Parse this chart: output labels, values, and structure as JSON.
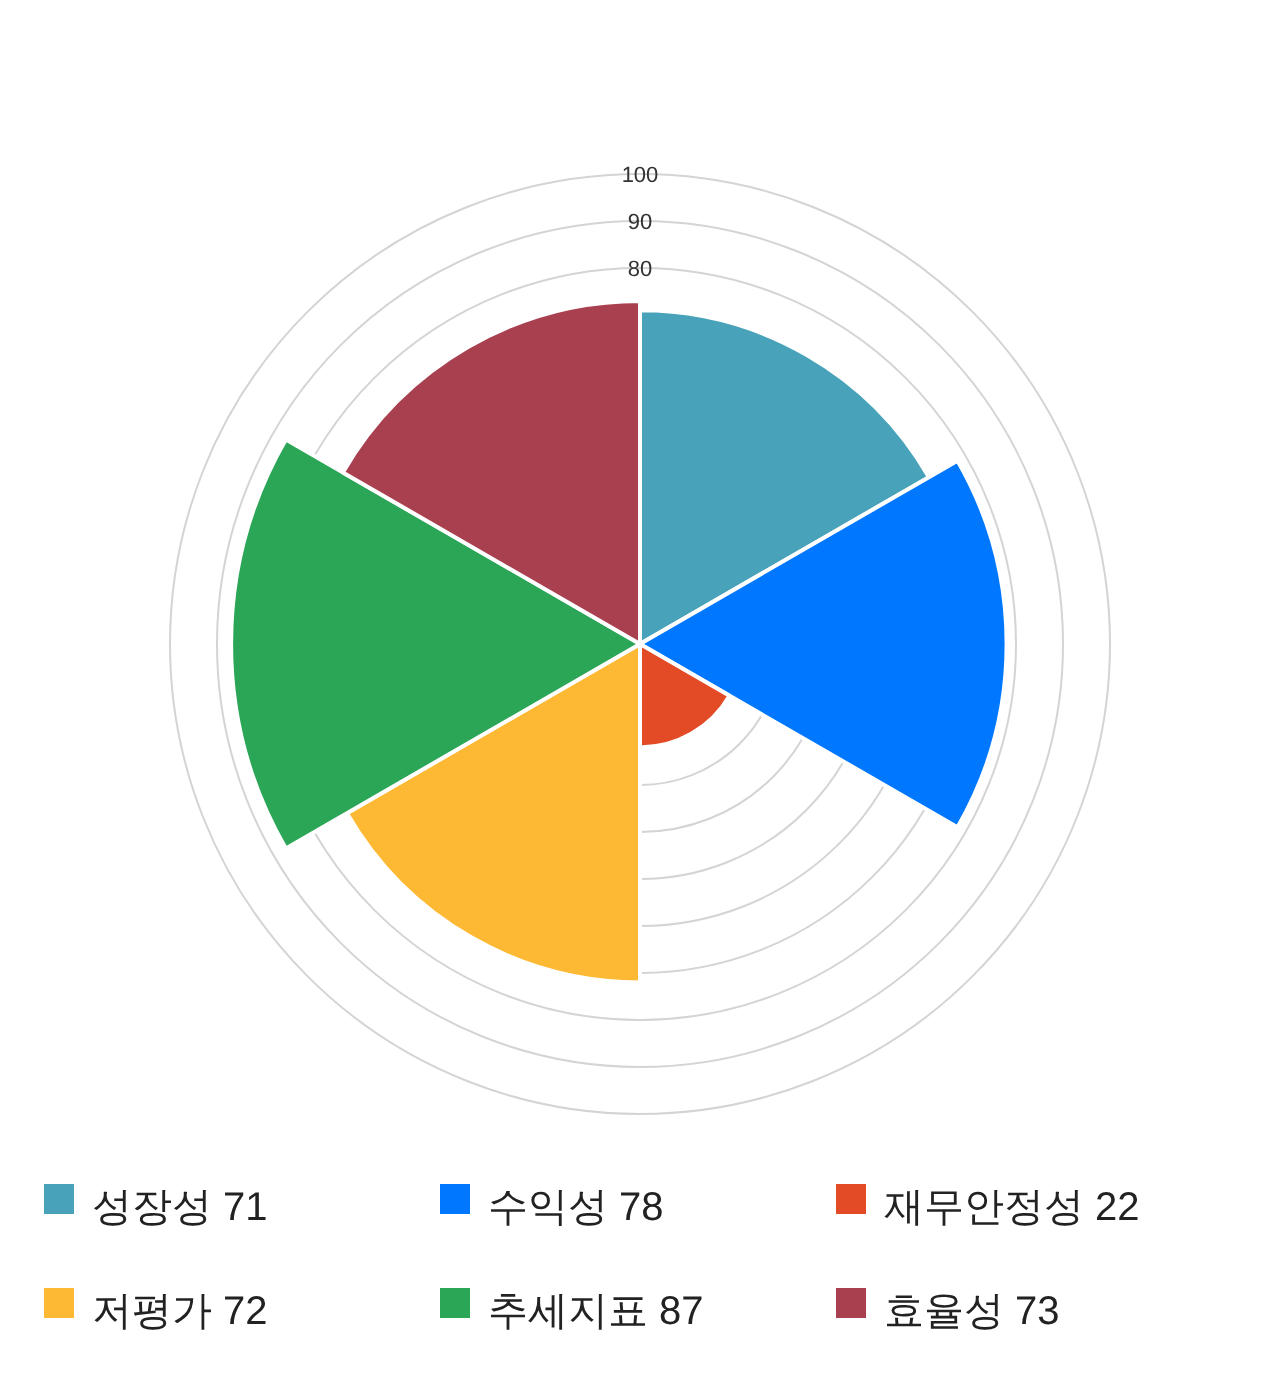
{
  "chart_data": {
    "type": "other",
    "values": [
      71,
      78,
      22,
      72,
      87,
      73
    ],
    "colors": [
      "#48a2b9",
      "#0077ff",
      "#e34a26",
      "#fdb933",
      "#2ba656",
      "#a8404f"
    ],
    "value_labels": [
      "성장성 71",
      "수익성 78",
      "재무안정성 22",
      "저평가 72",
      "추세지표 87",
      "효율성 73"
    ],
    "annotations": [
      "100",
      "90",
      "80"
    ]
  }
}
